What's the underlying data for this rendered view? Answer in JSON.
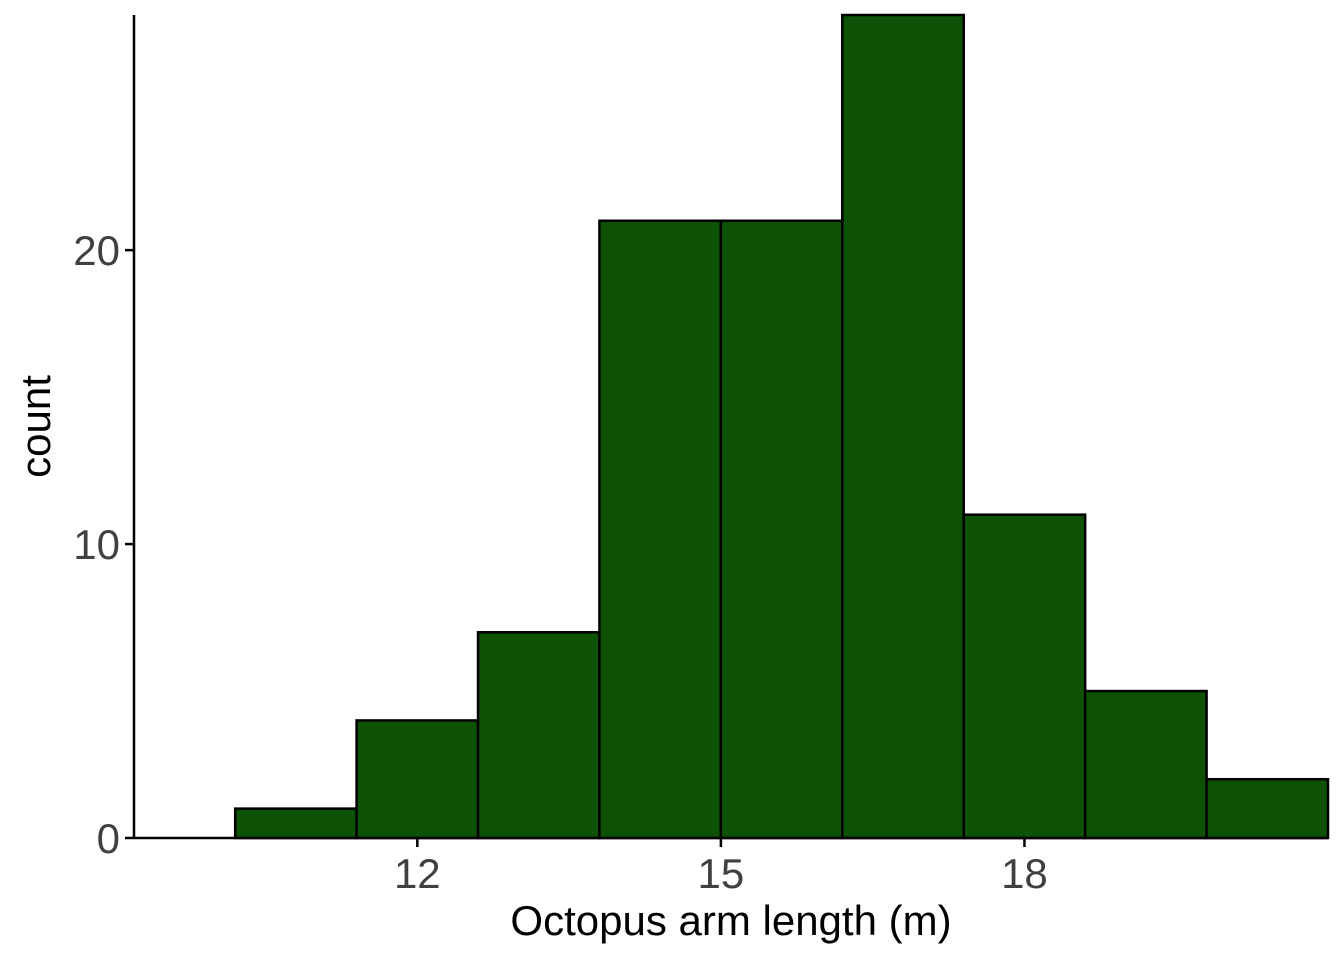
{
  "chart_data": {
    "type": "bar",
    "title": "",
    "xlabel": "Octopus arm length (m)",
    "ylabel": "count",
    "bins": [
      {
        "x0": 10.2,
        "x1": 11.4,
        "count": 1
      },
      {
        "x0": 11.4,
        "x1": 12.6,
        "count": 4
      },
      {
        "x0": 12.6,
        "x1": 13.8,
        "count": 7
      },
      {
        "x0": 13.8,
        "x1": 15.0,
        "count": 21
      },
      {
        "x0": 15.0,
        "x1": 16.2,
        "count": 21
      },
      {
        "x0": 16.2,
        "x1": 17.4,
        "count": 28
      },
      {
        "x0": 17.4,
        "x1": 18.6,
        "count": 11
      },
      {
        "x0": 18.6,
        "x1": 19.8,
        "count": 5
      },
      {
        "x0": 19.8,
        "x1": 21.0,
        "count": 2
      }
    ],
    "xlim": [
      9.2,
      21.0
    ],
    "ylim": [
      0,
      28
    ],
    "x_ticks": [
      12,
      15,
      18
    ],
    "y_ticks": [
      0,
      10,
      20
    ],
    "grid": false,
    "legend": "none",
    "colors": {
      "bar_fill": "#0d5205",
      "bar_stroke": "#000000",
      "axis": "#000000",
      "tick_label": "#404040"
    }
  }
}
